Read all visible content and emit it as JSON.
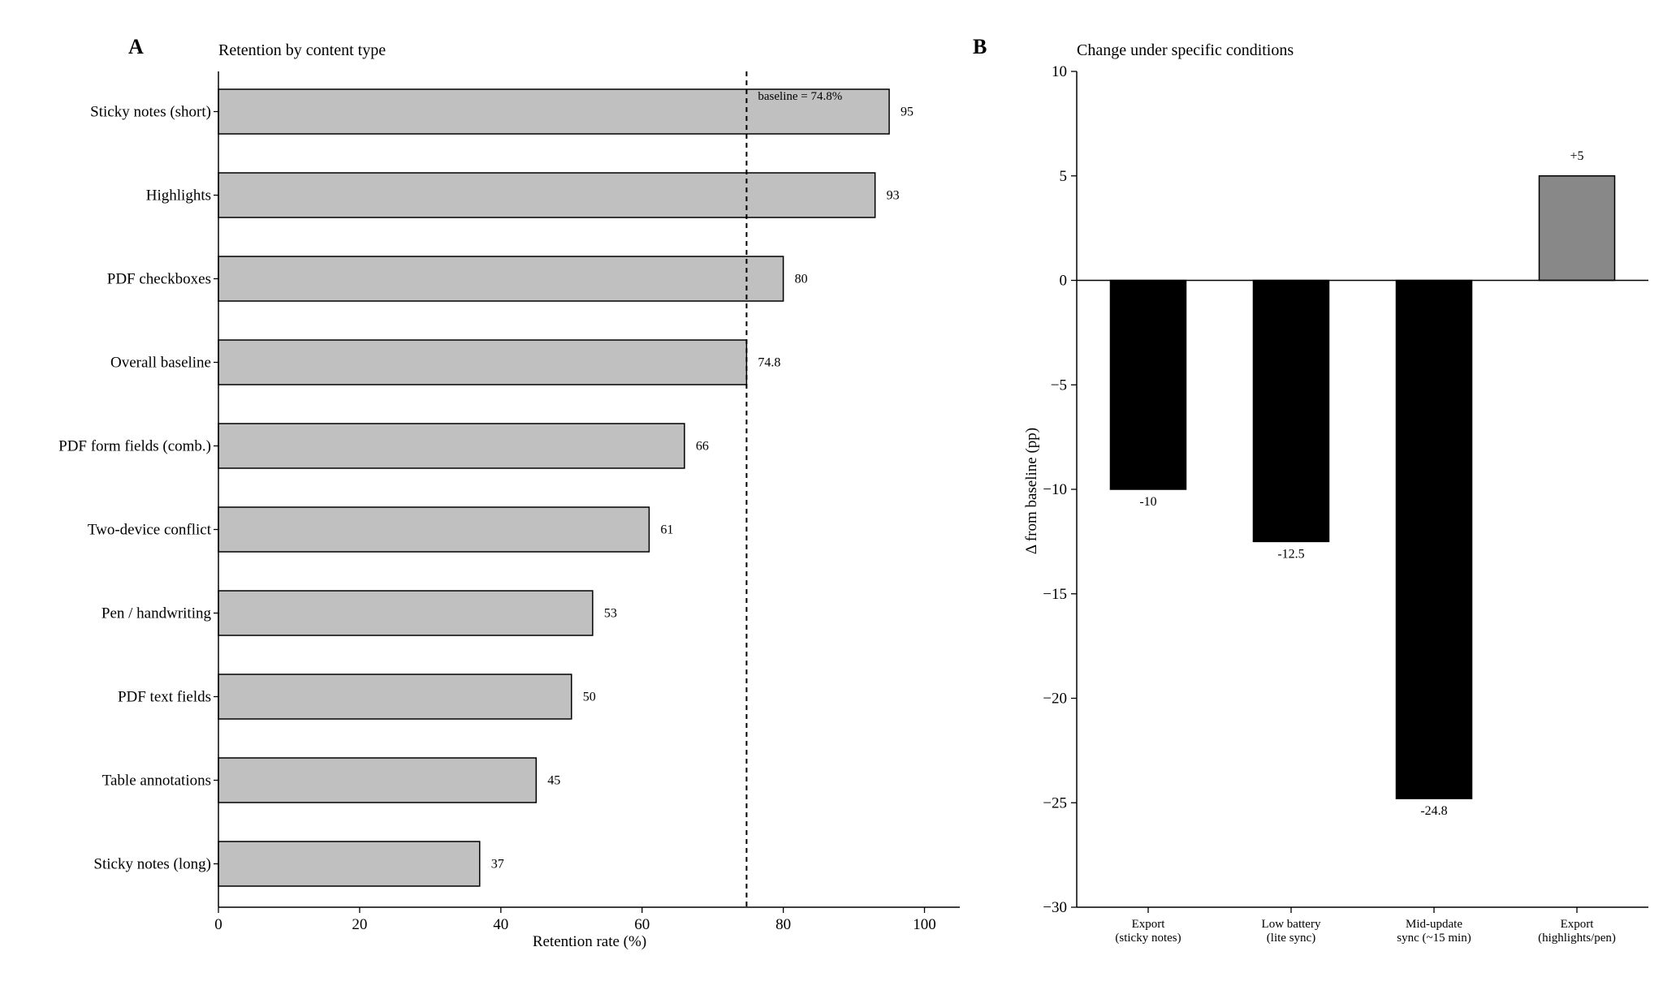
{
  "chart_data": [
    {
      "panel": "A",
      "type": "bar",
      "orientation": "horizontal",
      "title": "Retention by content type",
      "xlabel": "Retention rate (%)",
      "ylabel": "",
      "xlim": [
        0,
        105
      ],
      "xticks": [
        0,
        20,
        40,
        60,
        80,
        100
      ],
      "categories": [
        "Sticky notes (short)",
        "Highlights",
        "PDF checkboxes",
        "Overall baseline",
        "PDF form fields (comb.)",
        "Two-device conflict",
        "Pen / handwriting",
        "PDF text fields",
        "Table annotations",
        "Sticky notes (long)"
      ],
      "values": [
        95,
        93,
        80,
        74.8,
        66,
        61,
        53,
        50,
        45,
        37
      ],
      "value_labels": [
        "95",
        "93",
        "80",
        "74.8",
        "66",
        "61",
        "53",
        "50",
        "45",
        "37"
      ],
      "bar_color": "#c0c0c0",
      "reference_line": {
        "value": 74.8,
        "label": "baseline = 74.8%",
        "style": "dashed"
      },
      "grid": false
    },
    {
      "panel": "B",
      "type": "bar",
      "orientation": "vertical",
      "title": "Change under specific conditions",
      "xlabel": "",
      "ylabel": "Δ from baseline (pp)",
      "ylim": [
        -30,
        10
      ],
      "yticks": [
        10,
        5,
        0,
        -5,
        -10,
        -15,
        -20,
        -25,
        -30
      ],
      "ytick_labels": [
        "10",
        "5",
        "0",
        "−5",
        "−10",
        "−15",
        "−20",
        "−25",
        "−30"
      ],
      "categories": [
        [
          "Export",
          "(sticky notes)"
        ],
        [
          "Low battery",
          "(lite sync)"
        ],
        [
          "Mid-update",
          "sync (~15 min)"
        ],
        [
          "Export",
          "(highlights/pen)"
        ]
      ],
      "values": [
        -10,
        -12.5,
        -24.8,
        5
      ],
      "value_labels": [
        "-10",
        "-12.5",
        "-24.8",
        "+5"
      ],
      "colors": {
        "negative": "#000000",
        "positive": "#888888"
      },
      "grid": false
    }
  ]
}
